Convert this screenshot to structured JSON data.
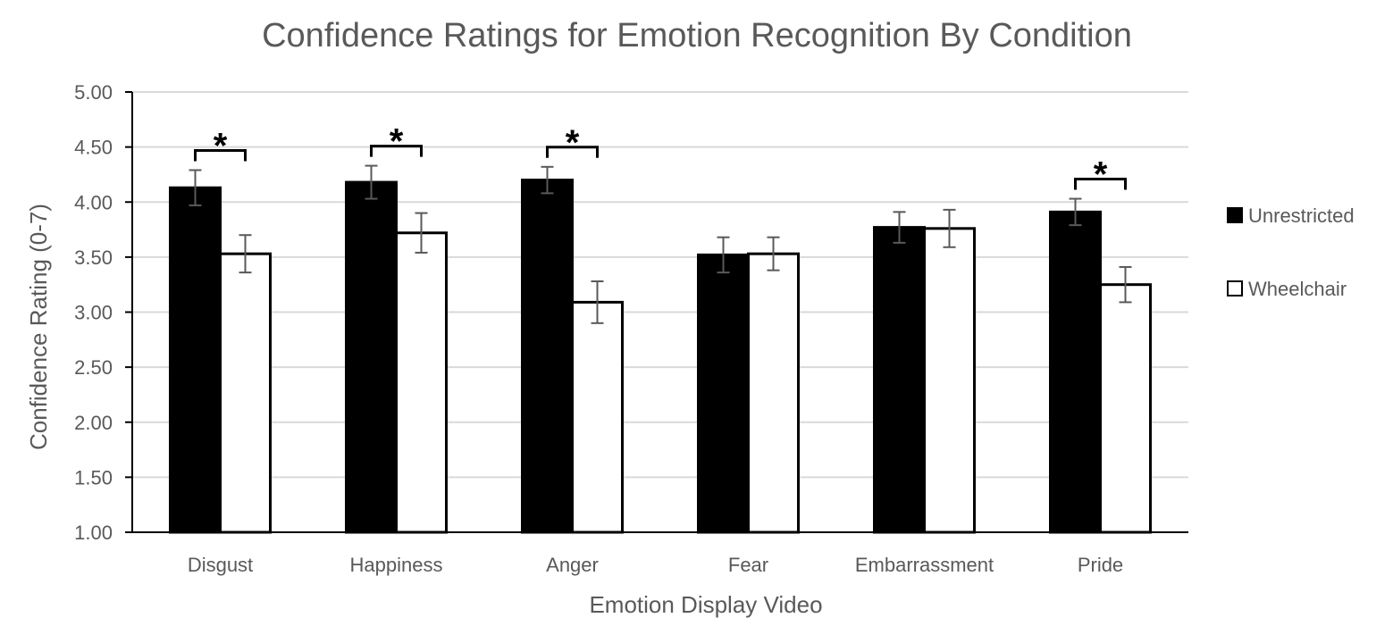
{
  "chart_data": {
    "type": "bar",
    "title": "Confidence Ratings for Emotion Recognition By Condition",
    "xlabel": "Emotion Display Video",
    "ylabel": "Confidence Rating (0-7)",
    "ylim": [
      1.0,
      5.0
    ],
    "yticks": [
      "1.00",
      "1.50",
      "2.00",
      "2.50",
      "3.00",
      "3.50",
      "4.00",
      "4.50",
      "5.00"
    ],
    "grid": true,
    "legend_position": "right",
    "categories": [
      "Disgust",
      "Happiness",
      "Anger",
      "Fear",
      "Embarrassment",
      "Pride"
    ],
    "series": [
      {
        "name": "Unrestricted",
        "color": "#000000",
        "values": [
          4.13,
          4.18,
          4.2,
          3.52,
          3.77,
          3.91
        ],
        "errors": [
          0.16,
          0.15,
          0.12,
          0.16,
          0.14,
          0.12
        ]
      },
      {
        "name": "Wheelchair",
        "color": "#ffffff",
        "values": [
          3.53,
          3.72,
          3.09,
          3.53,
          3.76,
          3.25
        ],
        "errors": [
          0.17,
          0.18,
          0.19,
          0.15,
          0.17,
          0.16
        ]
      }
    ],
    "significance": [
      {
        "category": "Disgust",
        "label": "*"
      },
      {
        "category": "Happiness",
        "label": "*"
      },
      {
        "category": "Anger",
        "label": "*"
      },
      {
        "category": "Pride",
        "label": "*"
      }
    ]
  }
}
